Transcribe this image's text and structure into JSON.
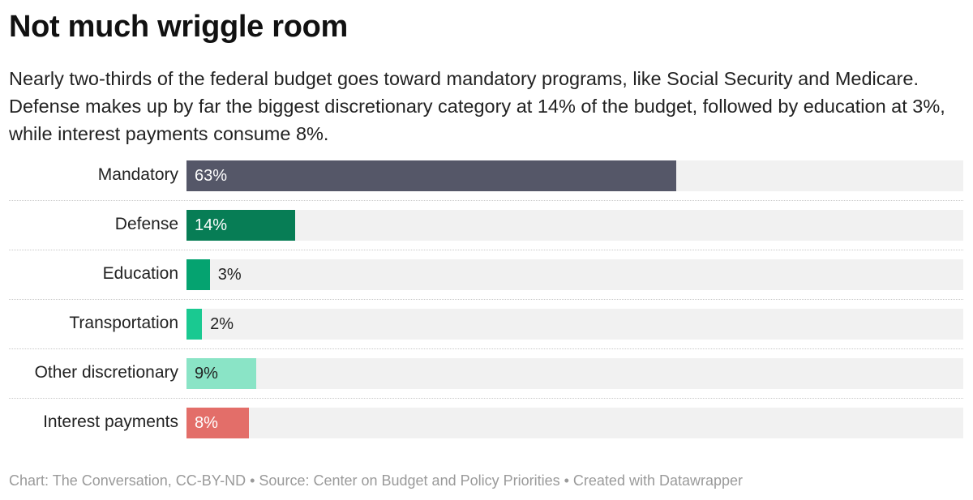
{
  "title": "Not much wriggle room",
  "subtitle": "Nearly two-thirds of the federal budget goes toward mandatory programs, like Social Security and Medicare. Defense makes up by far the biggest discretionary category at 14% of the budget, followed by education at 3%, while interest payments consume 8%.",
  "footer": "Chart: The Conversation, CC-BY-ND • Source: Center on Budget and Policy Priorities • Created with Datawrapper",
  "chart_data": {
    "type": "bar",
    "orientation": "horizontal",
    "xlim": [
      0,
      100
    ],
    "unit": "%",
    "categories": [
      "Mandatory",
      "Defense",
      "Education",
      "Transportation",
      "Other discretionary",
      "Interest payments"
    ],
    "values": [
      63,
      14,
      3,
      2,
      9,
      8
    ],
    "value_labels": [
      "63%",
      "14%",
      "3%",
      "2%",
      "9%",
      "8%"
    ],
    "colors": [
      "#555768",
      "#077d55",
      "#05a370",
      "#1ac991",
      "#8ae4c6",
      "#e36e69"
    ],
    "label_colors": [
      "#ffffff",
      "#ffffff",
      "#222222",
      "#222222",
      "#222222",
      "#ffffff"
    ]
  }
}
